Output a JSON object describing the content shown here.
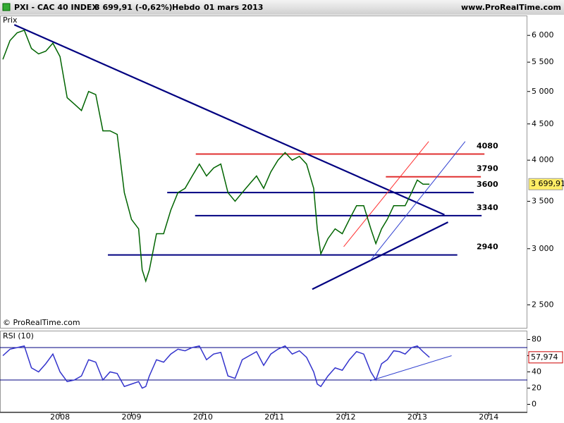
{
  "header": {
    "symbol": "PXI - CAC 40 INDEX",
    "quote": "3 699,91 (-0,62%)",
    "period": "Hebdo",
    "date": "01 mars 2013",
    "site": "www.ProRealTime.com",
    "copyright": "© ProRealTime.com"
  },
  "chart_data": [
    {
      "type": "line",
      "log_scale": true,
      "xlim": [
        2007.16,
        2014.54
      ],
      "xticks": [
        2008,
        2009,
        2010,
        2011,
        2012,
        2013,
        2014
      ],
      "ylim": [
        2320,
        6400
      ],
      "yticks": [
        {
          "value": 2500,
          "label": "2 500"
        },
        {
          "value": 3000,
          "label": "3 000"
        },
        {
          "value": 3500,
          "label": "3 500"
        },
        {
          "value": 4000,
          "label": "4 000"
        },
        {
          "value": 4500,
          "label": "4 500"
        },
        {
          "value": 5000,
          "label": "5 000"
        },
        {
          "value": 5500,
          "label": "5 500"
        },
        {
          "value": 6000,
          "label": "6 000"
        }
      ],
      "series": [
        {
          "name": "Prix",
          "color": "#006400",
          "x": [
            2007.2,
            2007.3,
            2007.4,
            2007.5,
            2007.6,
            2007.7,
            2007.8,
            2007.9,
            2008.0,
            2008.1,
            2008.2,
            2008.3,
            2008.4,
            2008.5,
            2008.6,
            2008.7,
            2008.8,
            2008.9,
            2009.0,
            2009.1,
            2009.15,
            2009.2,
            2009.25,
            2009.35,
            2009.45,
            2009.55,
            2009.65,
            2009.75,
            2009.85,
            2009.95,
            2010.05,
            2010.15,
            2010.25,
            2010.35,
            2010.45,
            2010.55,
            2010.65,
            2010.75,
            2010.85,
            2010.95,
            2011.05,
            2011.15,
            2011.25,
            2011.35,
            2011.45,
            2011.55,
            2011.6,
            2011.65,
            2011.75,
            2011.85,
            2011.95,
            2012.05,
            2012.15,
            2012.25,
            2012.35,
            2012.42,
            2012.5,
            2012.58,
            2012.67,
            2012.75,
            2012.83,
            2012.92,
            2013.0,
            2013.08,
            2013.17
          ],
          "values": [
            5550,
            5900,
            6050,
            6100,
            5750,
            5650,
            5700,
            5850,
            5600,
            4900,
            4800,
            4700,
            5000,
            4950,
            4400,
            4400,
            4350,
            3600,
            3300,
            3200,
            2800,
            2700,
            2800,
            3150,
            3150,
            3400,
            3600,
            3650,
            3800,
            3950,
            3800,
            3900,
            3950,
            3600,
            3500,
            3600,
            3700,
            3800,
            3650,
            3850,
            4000,
            4100,
            4000,
            4050,
            3950,
            3650,
            3200,
            2950,
            3100,
            3200,
            3150,
            3300,
            3450,
            3450,
            3200,
            3050,
            3200,
            3300,
            3450,
            3450,
            3450,
            3600,
            3750,
            3700,
            3699.91
          ]
        }
      ],
      "price_tag": {
        "value": 3699.91,
        "label": "3 699,91"
      },
      "levels": [
        {
          "value": 4080,
          "x": [
            2009.9,
            2013.94
          ],
          "color": "#e03030"
        },
        {
          "value": 3790,
          "x": [
            2012.56,
            2013.89
          ],
          "color": "#e03030"
        },
        {
          "value": 3600,
          "x": [
            2009.5,
            2013.79
          ],
          "color": "#000080"
        },
        {
          "value": 3340,
          "x": [
            2009.89,
            2013.9
          ],
          "color": "#000080"
        },
        {
          "value": 2940,
          "x": [
            2008.67,
            2013.56
          ],
          "color": "#000080"
        }
      ],
      "trendlines": [
        {
          "x": [
            2007.36,
            2013.38
          ],
          "y": [
            6210,
            3350
          ],
          "color": "#000080"
        },
        {
          "x": [
            2011.53,
            2013.43
          ],
          "y": [
            2630,
            3270
          ],
          "color": "#000080"
        },
        {
          "x": [
            2011.97,
            2013.16
          ],
          "y": [
            3020,
            4250
          ],
          "color": "#ff3030"
        },
        {
          "x": [
            2012.34,
            2013.67
          ],
          "y": [
            2885,
            4250
          ],
          "color": "#3040d0"
        }
      ]
    },
    {
      "type": "line",
      "xlim": [
        2007.16,
        2014.54
      ],
      "ylim": [
        -10,
        90
      ],
      "yticks": [
        0,
        20,
        40,
        60,
        80
      ],
      "series": [
        {
          "name": "RSI (10)",
          "color": "#3333cc",
          "x": [
            2007.2,
            2007.3,
            2007.4,
            2007.5,
            2007.6,
            2007.7,
            2007.8,
            2007.9,
            2008.0,
            2008.1,
            2008.2,
            2008.3,
            2008.4,
            2008.5,
            2008.6,
            2008.7,
            2008.8,
            2008.9,
            2009.0,
            2009.1,
            2009.15,
            2009.2,
            2009.25,
            2009.35,
            2009.45,
            2009.55,
            2009.65,
            2009.75,
            2009.85,
            2009.95,
            2010.05,
            2010.15,
            2010.25,
            2010.35,
            2010.45,
            2010.55,
            2010.65,
            2010.75,
            2010.85,
            2010.95,
            2011.05,
            2011.15,
            2011.25,
            2011.35,
            2011.45,
            2011.55,
            2011.6,
            2011.65,
            2011.75,
            2011.85,
            2011.95,
            2012.05,
            2012.15,
            2012.25,
            2012.35,
            2012.42,
            2012.5,
            2012.58,
            2012.67,
            2012.75,
            2012.83,
            2012.92,
            2013.0,
            2013.08,
            2013.17
          ],
          "values": [
            60,
            68,
            70,
            72,
            45,
            40,
            50,
            62,
            40,
            28,
            30,
            35,
            55,
            52,
            30,
            40,
            38,
            22,
            25,
            28,
            20,
            22,
            35,
            55,
            52,
            62,
            68,
            66,
            70,
            72,
            55,
            62,
            64,
            35,
            32,
            55,
            60,
            65,
            48,
            62,
            68,
            72,
            62,
            66,
            58,
            40,
            25,
            22,
            35,
            45,
            42,
            55,
            65,
            62,
            40,
            30,
            50,
            55,
            66,
            65,
            62,
            70,
            72,
            65,
            57.974
          ]
        }
      ],
      "rsi_tag": {
        "value": 57.974,
        "label": "57,974"
      },
      "levels": [
        {
          "value": 70,
          "color": "#000080"
        },
        {
          "value": 30,
          "color": "#000080"
        }
      ],
      "trendlines": [
        {
          "x": [
            2012.34,
            2013.48
          ],
          "y": [
            29,
            60
          ],
          "color": "#3040d0"
        }
      ]
    }
  ]
}
